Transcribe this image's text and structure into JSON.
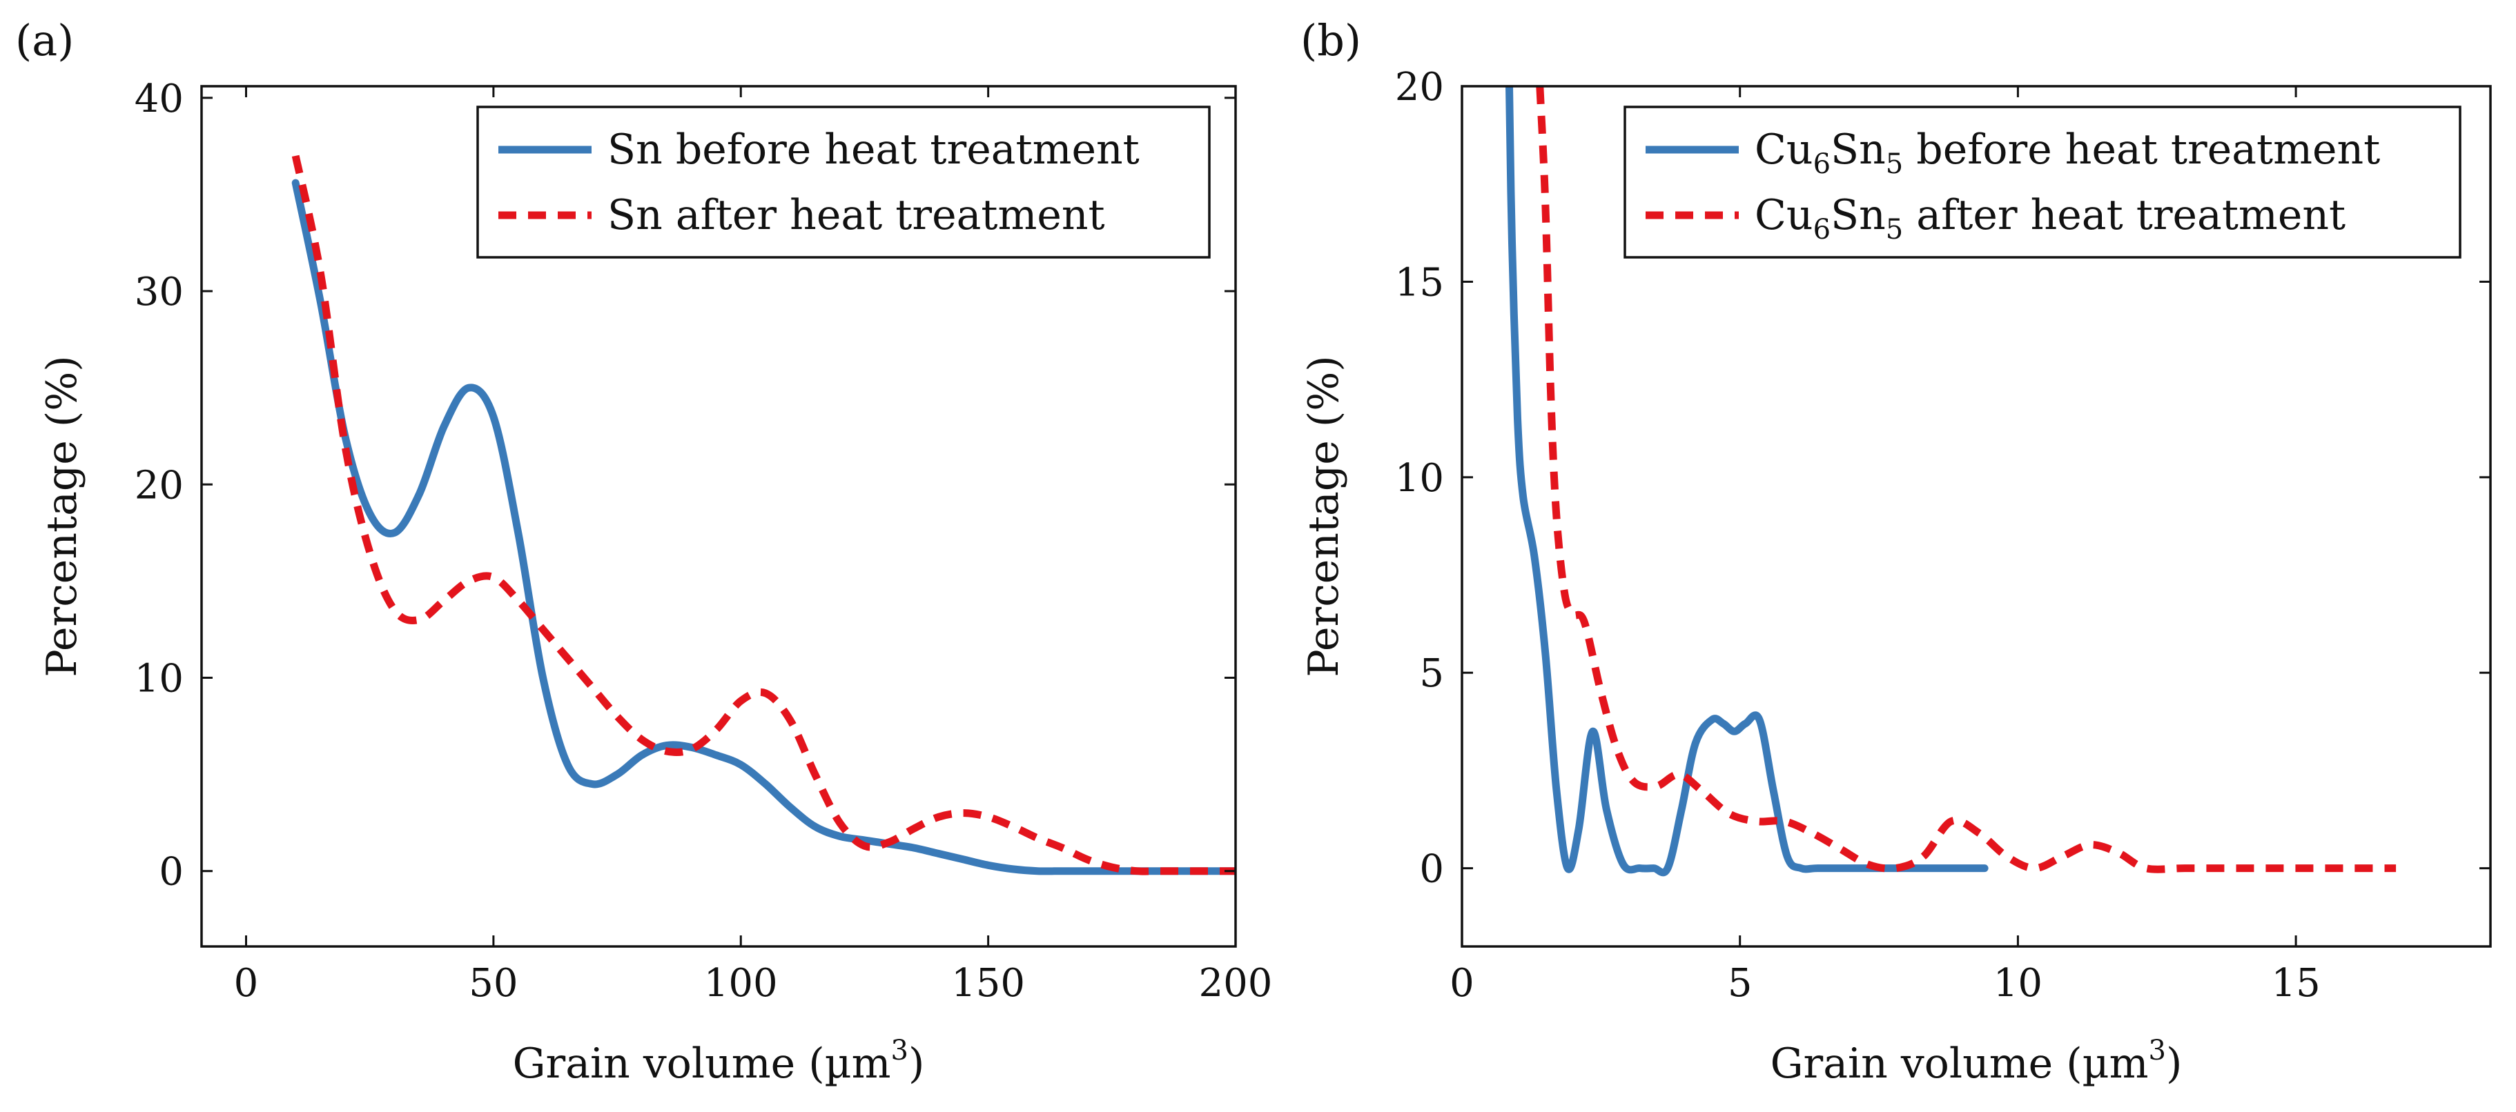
{
  "chart_data": [
    {
      "panel_label": "(a)",
      "type": "line",
      "title": "",
      "xlabel": "Grain volume (µm³)",
      "xlabel_text": "Grain volume (µm",
      "xlabel_sup": "3",
      "xlabel_close": ")",
      "ylabel": "Percentage (%)",
      "xlim": [
        -9,
        200
      ],
      "ylim": [
        -3.9,
        40.6
      ],
      "xticks": [
        0,
        50,
        100,
        150,
        200
      ],
      "yticks": [
        0,
        10,
        20,
        30,
        40
      ],
      "grid": false,
      "legend_position": "top-right",
      "series": [
        {
          "name": "Sn before heat treatment",
          "label_main": "Sn before heat treatment",
          "label_sub": "",
          "label_rest": "",
          "color": "#3a7ab8",
          "style": "solid",
          "x": [
            10,
            15,
            20,
            25,
            30,
            35,
            40,
            45,
            50,
            55,
            60,
            65,
            70,
            75,
            80,
            85,
            90,
            95,
            100,
            105,
            110,
            115,
            120,
            125,
            130,
            135,
            140,
            145,
            150,
            155,
            160,
            165,
            170,
            175,
            180,
            185,
            190,
            195,
            200
          ],
          "y": [
            35.6,
            29.5,
            22.5,
            18.5,
            17.5,
            19.5,
            23.0,
            25.0,
            23.5,
            17.5,
            10.0,
            5.5,
            4.5,
            5.0,
            6.0,
            6.5,
            6.4,
            6.0,
            5.5,
            4.5,
            3.3,
            2.3,
            1.8,
            1.6,
            1.4,
            1.2,
            0.9,
            0.6,
            0.3,
            0.1,
            0.0,
            0.0,
            0.0,
            0.0,
            0.0,
            0.0,
            0.0,
            0.0,
            0.0
          ]
        },
        {
          "name": "Sn after heat treatment",
          "label_main": "Sn after heat treatment",
          "label_sub": "",
          "label_rest": "",
          "color": "#e3141c",
          "style": "dashed",
          "x": [
            10,
            15,
            20,
            25,
            30,
            35,
            40,
            45,
            50,
            55,
            60,
            65,
            70,
            75,
            80,
            85,
            90,
            95,
            100,
            105,
            110,
            115,
            120,
            125,
            130,
            135,
            140,
            145,
            150,
            155,
            160,
            165,
            170,
            175,
            180,
            185,
            190,
            195,
            200
          ],
          "y": [
            37.0,
            31.0,
            22.0,
            16.5,
            13.5,
            13.0,
            14.0,
            15.0,
            15.2,
            14.0,
            12.5,
            11.0,
            9.5,
            8.0,
            6.8,
            6.2,
            6.3,
            7.3,
            8.8,
            9.2,
            7.8,
            5.0,
            2.5,
            1.3,
            1.5,
            2.2,
            2.8,
            3.0,
            2.8,
            2.3,
            1.7,
            1.2,
            0.6,
            0.2,
            0.0,
            0.0,
            0.0,
            0.0,
            0.0
          ]
        }
      ]
    },
    {
      "panel_label": "(b)",
      "type": "line",
      "title": "",
      "xlabel": "Grain volume (µm³)",
      "xlabel_text": "Grain volume (µm",
      "xlabel_sup": "3",
      "xlabel_close": ")",
      "ylabel": "Percentage (%)",
      "xlim": [
        0,
        18.5
      ],
      "ylim": [
        -2,
        20
      ],
      "xticks": [
        0,
        5,
        10,
        15
      ],
      "yticks": [
        0,
        5,
        10,
        15,
        20
      ],
      "grid": false,
      "legend_position": "top-right",
      "series": [
        {
          "name": "Cu6Sn5 before heat treatment",
          "label_main": "Cu",
          "label_sub": "6",
          "label_rest": "Sn",
          "label_sub2": "5",
          "label_tail": " before heat treatment",
          "color": "#3a7ab8",
          "style": "solid",
          "x": [
            0.85,
            0.9,
            1.0,
            1.1,
            1.3,
            1.5,
            1.7,
            1.9,
            2.1,
            2.35,
            2.6,
            2.9,
            3.2,
            3.45,
            3.7,
            3.95,
            4.2,
            4.5,
            4.7,
            4.9,
            5.1,
            5.35,
            5.6,
            5.85,
            6.1,
            6.4,
            7.0,
            8.0,
            9.0,
            9.4
          ],
          "y": [
            20.0,
            16.0,
            11.5,
            9.5,
            8.0,
            5.5,
            2.0,
            0.0,
            1.0,
            3.5,
            1.5,
            0.1,
            0.0,
            0.0,
            0.0,
            1.5,
            3.2,
            3.8,
            3.7,
            3.5,
            3.7,
            3.8,
            2.0,
            0.3,
            0.0,
            0.0,
            0.0,
            0.0,
            0.0,
            0.0
          ]
        },
        {
          "name": "Cu6Sn5 after heat treatment",
          "label_main": "Cu",
          "label_sub": "6",
          "label_rest": "Sn",
          "label_sub2": "5",
          "label_tail": " after heat treatment",
          "color": "#e3141c",
          "style": "dashed",
          "x": [
            1.4,
            1.5,
            1.6,
            1.7,
            1.85,
            2.0,
            2.2,
            2.5,
            2.8,
            3.1,
            3.5,
            3.9,
            4.3,
            4.8,
            5.3,
            5.8,
            6.3,
            6.8,
            7.3,
            7.8,
            8.3,
            8.8,
            9.3,
            9.8,
            10.3,
            10.8,
            11.3,
            11.8,
            12.3,
            13.0,
            14.0,
            15.0,
            16.0,
            16.8
          ],
          "y": [
            20.0,
            17.0,
            12.0,
            9.0,
            7.0,
            6.5,
            6.3,
            4.5,
            3.0,
            2.2,
            2.1,
            2.4,
            2.0,
            1.4,
            1.2,
            1.2,
            0.9,
            0.5,
            0.1,
            0.0,
            0.3,
            1.2,
            0.9,
            0.3,
            0.0,
            0.3,
            0.6,
            0.4,
            0.0,
            0.0,
            0.0,
            0.0,
            0.0,
            0.0
          ]
        }
      ]
    }
  ]
}
